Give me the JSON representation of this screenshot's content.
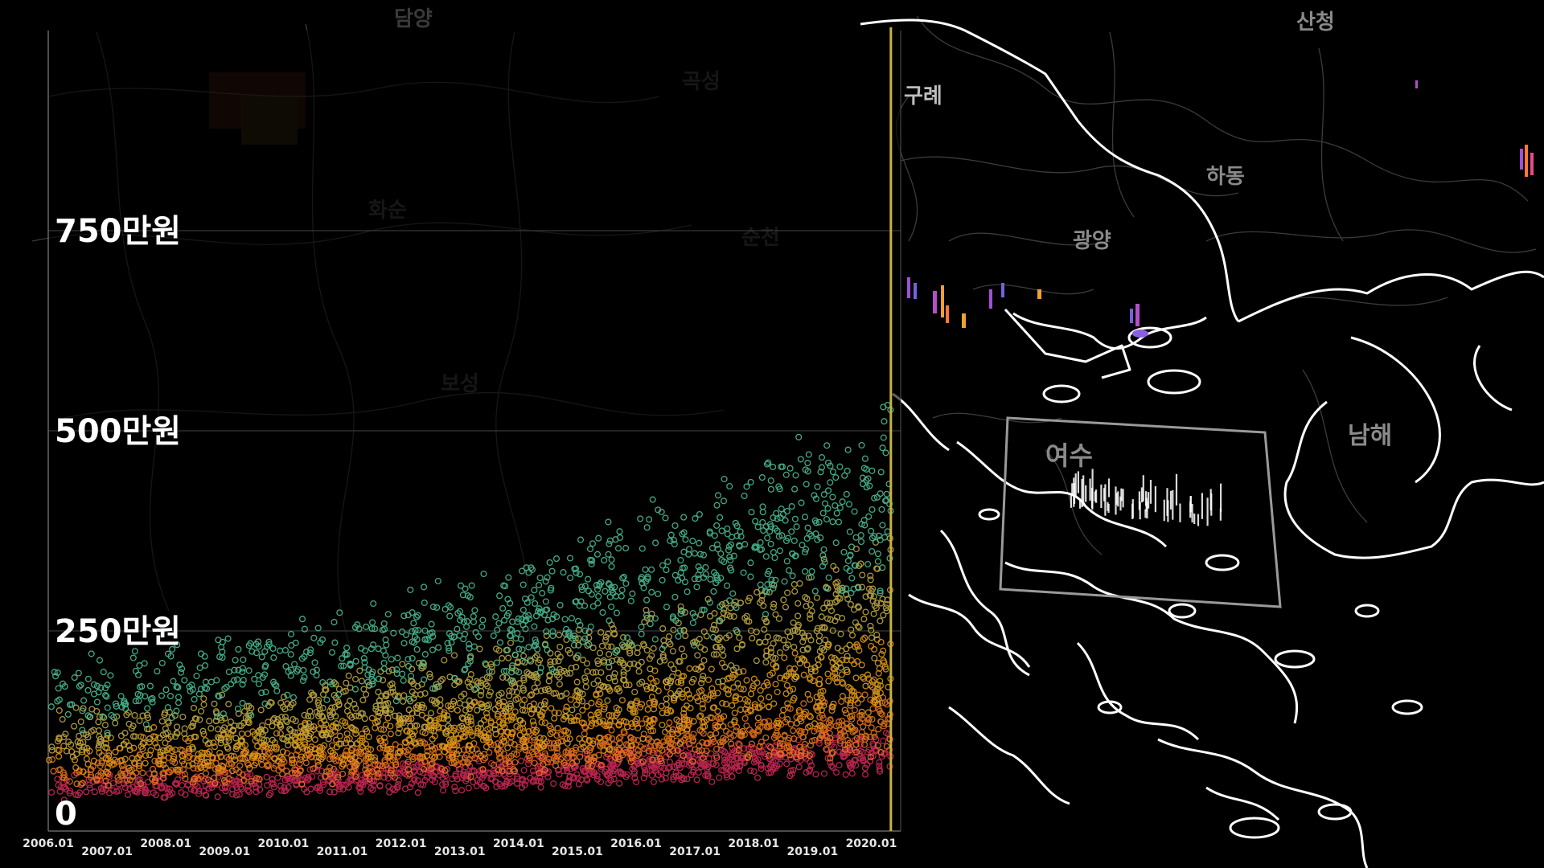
{
  "map": {
    "places": [
      {
        "id": "gurye",
        "label": "구례"
      },
      {
        "id": "hadong",
        "label": "하동"
      },
      {
        "id": "gwangyang",
        "label": "광양"
      },
      {
        "id": "sancheong",
        "label": "산청"
      },
      {
        "id": "namhae",
        "label": "남해"
      },
      {
        "id": "yeosu",
        "label": "여수"
      },
      {
        "id": "suncheon",
        "label": "순천"
      },
      {
        "id": "boseong",
        "label": "보성"
      },
      {
        "id": "gokseong",
        "label": "곡성"
      },
      {
        "id": "damyang",
        "label": "담양"
      },
      {
        "id": "hwasun",
        "label": "화순"
      }
    ],
    "highlight_region": "여수",
    "colors": {
      "coast": "#ffffff",
      "district": "#3c3c3c",
      "box": "#9a9a9a"
    }
  },
  "chart_data": {
    "type": "scatter",
    "title": "",
    "xlabel": "",
    "ylabel": "",
    "y_unit": "만원",
    "ylim": [
      0,
      1000
    ],
    "yticks": [
      {
        "value": 0,
        "label": "0"
      },
      {
        "value": 250,
        "label": "250만원"
      },
      {
        "value": 500,
        "label": "500만원"
      },
      {
        "value": 750,
        "label": "750만원"
      }
    ],
    "xlim": [
      "2006-01",
      "2020-07"
    ],
    "xticks": [
      "2006.01",
      "2007.01",
      "2008.01",
      "2009.01",
      "2010.01",
      "2011.01",
      "2012.01",
      "2013.01",
      "2014.01",
      "2015.01",
      "2016.01",
      "2017.01",
      "2018.01",
      "2019.01",
      "2020.01"
    ],
    "current_marker": "2020.05",
    "grid": true,
    "series": [
      {
        "color": "#d62b5a",
        "trend_start": 55,
        "trend_end": 100
      },
      {
        "color": "#f07b1c",
        "trend_start": 75,
        "trend_end": 135
      },
      {
        "color": "#e9a019",
        "trend_start": 95,
        "trend_end": 195
      },
      {
        "color": "#c8b245",
        "trend_start": 120,
        "trend_end": 290
      },
      {
        "color": "#4fc79b",
        "trend_start": 170,
        "trend_end": 420
      }
    ],
    "colors": {
      "marker_line": "#c9b23c",
      "grid": "#444444",
      "axis": "#666666"
    }
  }
}
